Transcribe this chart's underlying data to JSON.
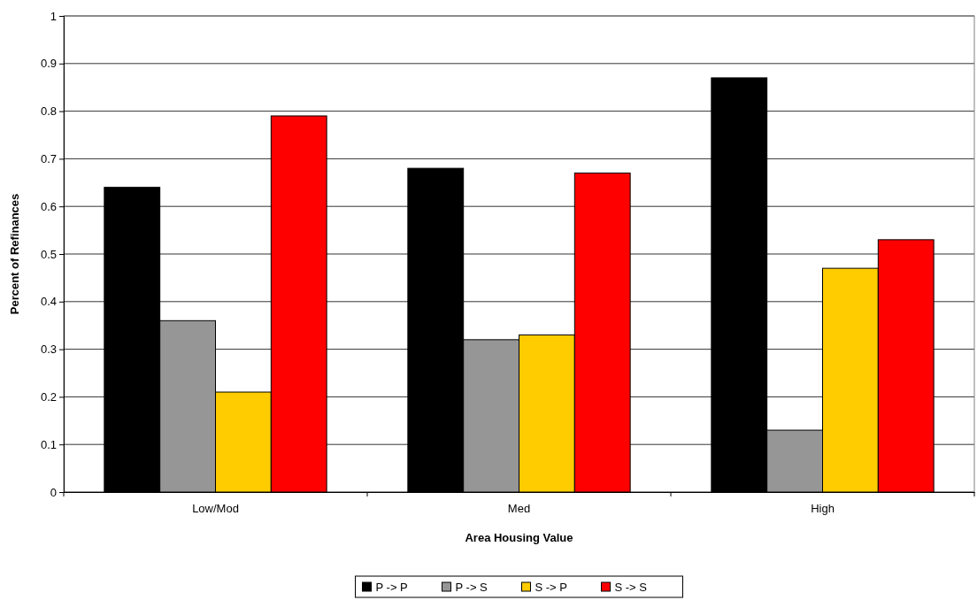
{
  "chart_data": {
    "type": "bar",
    "xlabel": "Area Housing Value",
    "ylabel": "Percent of Refinances",
    "categories": [
      "Low/Mod",
      "Med",
      "High"
    ],
    "series": [
      {
        "name": "P -> P",
        "color": "#000000",
        "values": [
          0.64,
          0.68,
          0.87
        ]
      },
      {
        "name": "P -> S",
        "color": "#969696",
        "values": [
          0.36,
          0.32,
          0.13
        ]
      },
      {
        "name": "S -> P",
        "color": "#ffcc00",
        "values": [
          0.21,
          0.33,
          0.47
        ]
      },
      {
        "name": "S -> S",
        "color": "#ff0000",
        "values": [
          0.79,
          0.67,
          0.53
        ]
      }
    ],
    "ylim": [
      0,
      1
    ],
    "yticks": [
      0,
      0.1,
      0.2,
      0.3,
      0.4,
      0.5,
      0.6,
      0.7,
      0.8,
      0.9,
      1
    ],
    "grid": "y",
    "legend": "bottom"
  }
}
